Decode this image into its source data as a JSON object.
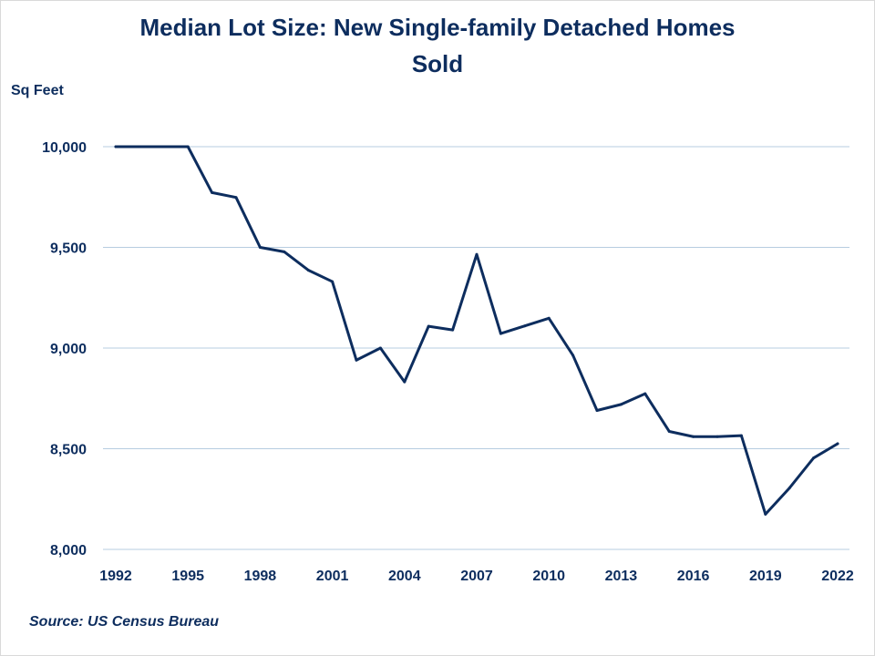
{
  "chart_data": {
    "type": "line",
    "title_line1": "Median Lot Size: New Single-family Detached Homes",
    "title_line2": "Sold",
    "ylabel": "Sq Feet",
    "source": "Source: US Census Bureau",
    "ylim": [
      8000,
      10000
    ],
    "xlim": [
      1992,
      2022
    ],
    "yticks": [
      {
        "value": 10000,
        "label": "10,000"
      },
      {
        "value": 9500,
        "label": "9,500"
      },
      {
        "value": 9000,
        "label": "9,000"
      },
      {
        "value": 8500,
        "label": "8,500"
      },
      {
        "value": 8000,
        "label": "8,000"
      }
    ],
    "xticks": [
      {
        "value": 1992,
        "label": "1992"
      },
      {
        "value": 1995,
        "label": "1995"
      },
      {
        "value": 1998,
        "label": "1998"
      },
      {
        "value": 2001,
        "label": "2001"
      },
      {
        "value": 2004,
        "label": "2004"
      },
      {
        "value": 2007,
        "label": "2007"
      },
      {
        "value": 2010,
        "label": "2010"
      },
      {
        "value": 2013,
        "label": "2013"
      },
      {
        "value": 2016,
        "label": "2016"
      },
      {
        "value": 2019,
        "label": "2019"
      },
      {
        "value": 2022,
        "label": "2022"
      }
    ],
    "grid": true,
    "line_color": "#0d2d5e",
    "x": [
      1992,
      1993,
      1994,
      1995,
      1996,
      1997,
      1998,
      1999,
      2000,
      2001,
      2002,
      2003,
      2004,
      2005,
      2006,
      2007,
      2008,
      2009,
      2010,
      2011,
      2012,
      2013,
      2014,
      2015,
      2016,
      2017,
      2018,
      2019,
      2020,
      2021,
      2022
    ],
    "values": [
      10000,
      10000,
      10000,
      10000,
      9772,
      9748,
      9500,
      9478,
      9387,
      9330,
      8940,
      9000,
      8832,
      9108,
      9090,
      9465,
      9072,
      9110,
      9148,
      8964,
      8690,
      8720,
      8773,
      8586,
      8560,
      8560,
      8565,
      8175,
      8305,
      8454,
      8525
    ]
  }
}
